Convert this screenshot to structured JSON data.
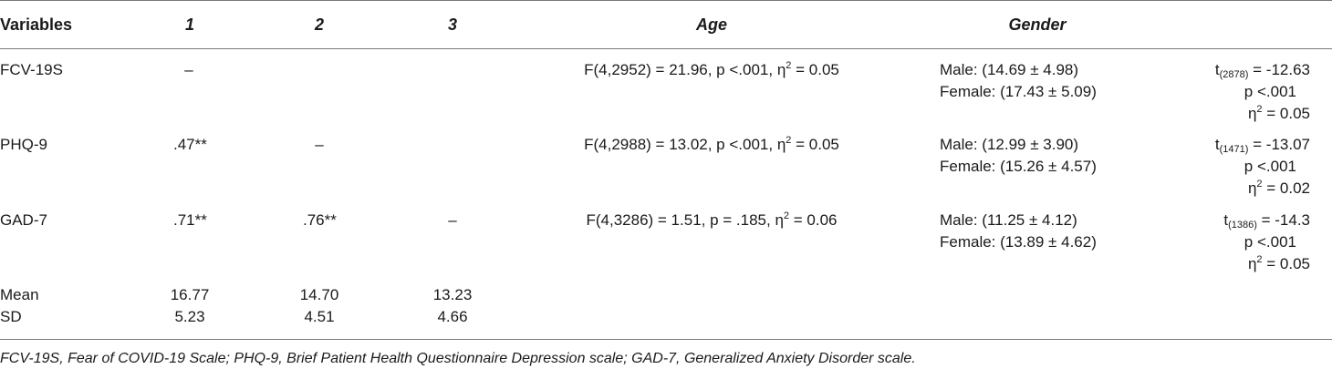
{
  "table": {
    "headers": {
      "variables": "Variables",
      "col1": "1",
      "col2": "2",
      "col3": "3",
      "age": "Age",
      "gender": "Gender"
    },
    "rows": [
      {
        "variable": "FCV-19S",
        "c1": "–",
        "c2": "",
        "c3": "",
        "age_pre": "F(4,2952) = 21.96, p <.001, η",
        "age_sup": "2",
        "age_post": " = 0.05",
        "gender_male": "Male: (14.69 ± 4.98)",
        "gender_female": "Female: (17.43 ± 5.09)",
        "t_sym": "t",
        "t_df": "(2878)",
        "t_val": " = -12.63",
        "p": "p <.001",
        "eta_pre": "η",
        "eta_sup": "2",
        "eta_post": " = 0.05"
      },
      {
        "variable": "PHQ-9",
        "c1": ".47**",
        "c2": "–",
        "c3": "",
        "age_pre": "F(4,2988) = 13.02, p <.001, η",
        "age_sup": "2",
        "age_post": " = 0.05",
        "gender_male": "Male: (12.99 ± 3.90)",
        "gender_female": "Female: (15.26 ± 4.57)",
        "t_sym": "t",
        "t_df": "(1471)",
        "t_val": " = -13.07",
        "p": "p <.001",
        "eta_pre": "η",
        "eta_sup": "2",
        "eta_post": " = 0.02"
      },
      {
        "variable": "GAD-7",
        "c1": ".71**",
        "c2": ".76**",
        "c3": "–",
        "age_pre": "F(4,3286) = 1.51, p = .185, η",
        "age_sup": "2",
        "age_post": " = 0.06",
        "gender_male": "Male: (11.25 ± 4.12)",
        "gender_female": "Female: (13.89 ± 4.62)",
        "t_sym": "t",
        "t_df": "(1386)",
        "t_val": " = -14.3",
        "p": "p <.001",
        "eta_pre": "η",
        "eta_sup": "2",
        "eta_post": " = 0.05"
      }
    ],
    "summary": [
      {
        "label": "Mean",
        "c1": "16.77",
        "c2": "14.70",
        "c3": "13.23"
      },
      {
        "label": "SD",
        "c1": "5.23",
        "c2": "4.51",
        "c3": "4.66"
      }
    ]
  },
  "footnote": "FCV-19S, Fear of COVID-19 Scale; PHQ-9, Brief Patient Health Questionnaire Depression scale; GAD-7, Generalized Anxiety Disorder scale.",
  "colors": {
    "text": "#1a1a1a",
    "rule": "#7a7a7a"
  }
}
